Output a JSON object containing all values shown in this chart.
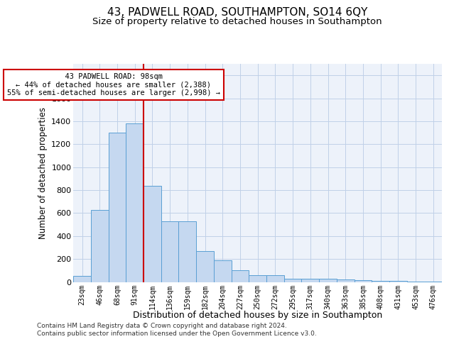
{
  "title": "43, PADWELL ROAD, SOUTHAMPTON, SO14 6QY",
  "subtitle": "Size of property relative to detached houses in Southampton",
  "xlabel": "Distribution of detached houses by size in Southampton",
  "ylabel": "Number of detached properties",
  "categories": [
    "23sqm",
    "46sqm",
    "68sqm",
    "91sqm",
    "114sqm",
    "136sqm",
    "159sqm",
    "182sqm",
    "204sqm",
    "227sqm",
    "250sqm",
    "272sqm",
    "295sqm",
    "317sqm",
    "340sqm",
    "363sqm",
    "385sqm",
    "408sqm",
    "431sqm",
    "453sqm",
    "476sqm"
  ],
  "values": [
    50,
    630,
    1300,
    1380,
    840,
    530,
    530,
    270,
    190,
    100,
    60,
    60,
    30,
    30,
    25,
    20,
    15,
    10,
    8,
    5,
    5
  ],
  "bar_color": "#c5d8f0",
  "bar_edge_color": "#5a9fd4",
  "annotation_text": "  43 PADWELL ROAD: 98sqm  \n← 44% of detached houses are smaller (2,388)\n55% of semi-detached houses are larger (2,998) →",
  "annotation_box_color": "#ffffff",
  "annotation_box_edge_color": "#cc0000",
  "red_line_color": "#cc0000",
  "ylim": [
    0,
    1900
  ],
  "yticks": [
    0,
    200,
    400,
    600,
    800,
    1000,
    1200,
    1400,
    1600,
    1800
  ],
  "grid_color": "#c0d0e8",
  "background_color": "#edf2fa",
  "footer_line1": "Contains HM Land Registry data © Crown copyright and database right 2024.",
  "footer_line2": "Contains public sector information licensed under the Open Government Licence v3.0.",
  "title_fontsize": 11,
  "subtitle_fontsize": 9.5,
  "xlabel_fontsize": 9,
  "ylabel_fontsize": 8.5
}
